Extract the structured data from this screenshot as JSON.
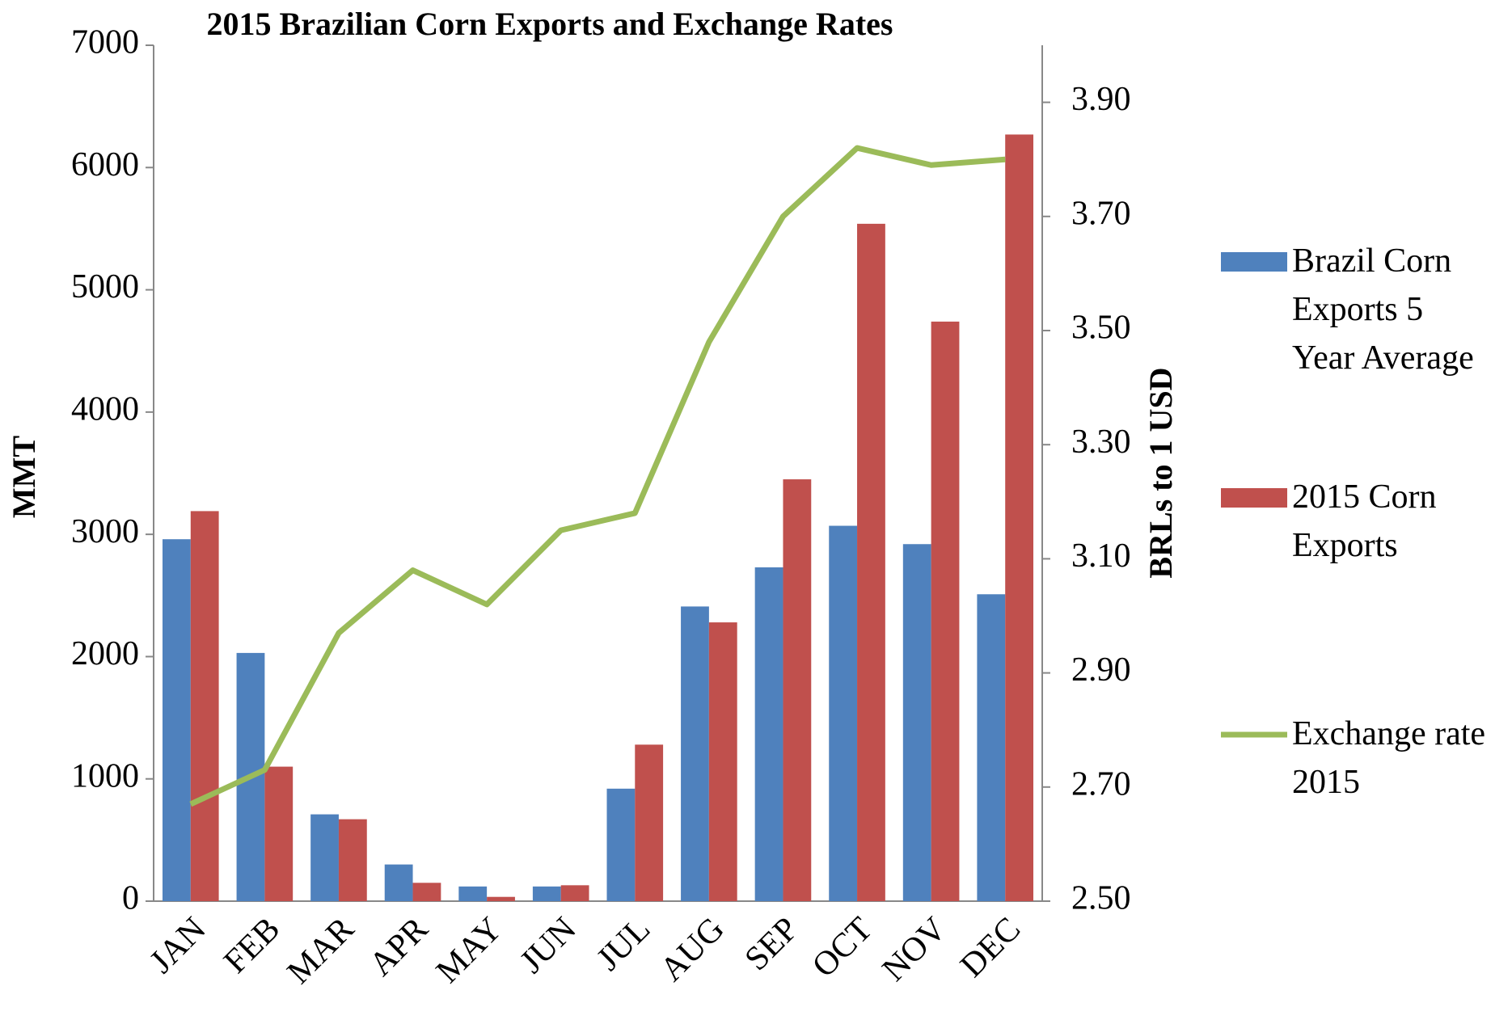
{
  "chart_data": {
    "type": "bar_line",
    "title": "2015 Brazilian Corn Exports and Exchange Rates",
    "ylabel": "MMT",
    "y2label": "BRLs to 1 USD",
    "categories": [
      "JAN",
      "FEB",
      "MAR",
      "APR",
      "MAY",
      "JUN",
      "JUL",
      "AUG",
      "SEP",
      "OCT",
      "NOV",
      "DEC"
    ],
    "series": [
      {
        "name": "Brazil Corn Exports 5 Year Average",
        "type": "bar",
        "color": "#4f81bd",
        "values": [
          2960,
          2030,
          710,
          300,
          120,
          120,
          920,
          2410,
          2730,
          3070,
          2920,
          2510
        ]
      },
      {
        "name": "2015 Corn Exports",
        "type": "bar",
        "color": "#c0504d",
        "values": [
          3190,
          1100,
          670,
          150,
          35,
          130,
          1280,
          2280,
          3450,
          5540,
          4740,
          6270
        ]
      },
      {
        "name": "Exchange rate 2015",
        "type": "line",
        "axis": "y2",
        "color": "#9bbb59",
        "values": [
          2.67,
          2.73,
          2.97,
          3.08,
          3.02,
          3.15,
          3.18,
          3.48,
          3.7,
          3.82,
          3.79,
          3.8
        ]
      }
    ],
    "ylim": [
      0,
      7000
    ],
    "yticks": [
      0,
      1000,
      2000,
      3000,
      4000,
      5000,
      6000,
      7000
    ],
    "y2lim": [
      2.5,
      4.0
    ],
    "y2ticks": [
      {
        "value": 2.5,
        "label": "2.50"
      },
      {
        "value": 2.7,
        "label": "2.70"
      },
      {
        "value": 2.9,
        "label": "2.90"
      },
      {
        "value": 3.1,
        "label": "3.10"
      },
      {
        "value": 3.3,
        "label": "3.30"
      },
      {
        "value": 3.5,
        "label": "3.50"
      },
      {
        "value": 3.7,
        "label": "3.70"
      },
      {
        "value": 3.9,
        "label": "3.90"
      }
    ],
    "grid": false,
    "legend": "right"
  }
}
